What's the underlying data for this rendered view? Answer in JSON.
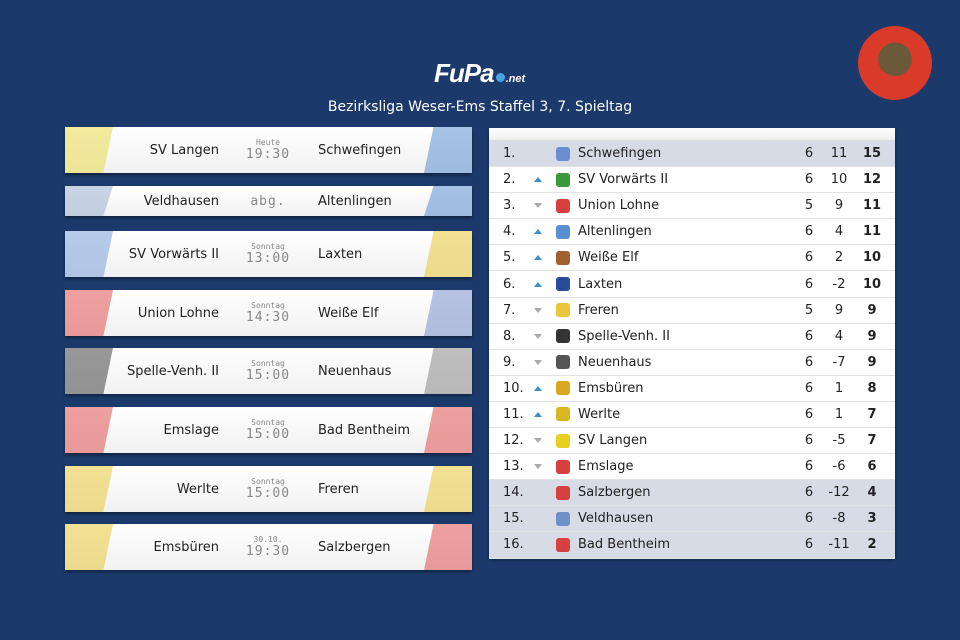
{
  "header": {
    "logo_text": "FuPa",
    "logo_suffix": ".net",
    "subtitle": "Bezirksliga Weser-Ems Staffel 3, 7. Spieltag"
  },
  "colors": {
    "background": "#1b3a6b",
    "highlight": "#d6dbe5",
    "trend_up": "#3a8fd0",
    "trend_down": "#aaaaaa"
  },
  "matches": [
    {
      "home": "SV Langen",
      "day": "Heute",
      "time": "19:30",
      "away": "Schwefingen",
      "home_color": "#e8d84a",
      "away_color": "#5a8fd0"
    },
    {
      "home": "Veldhausen",
      "day": "",
      "time": "abg.",
      "away": "Altenlingen",
      "home_color": "#9ab0d0",
      "away_color": "#5a8fd0"
    },
    {
      "home": "SV Vorwärts II",
      "day": "Sonntag",
      "time": "13:00",
      "away": "Laxten",
      "home_color": "#7aa0d8",
      "away_color": "#e8c83a"
    },
    {
      "home": "Union Lohne",
      "day": "Sonntag",
      "time": "14:30",
      "away": "Weiße Elf",
      "home_color": "#e05050",
      "away_color": "#7a90c8"
    },
    {
      "home": "Spelle-Venh. II",
      "day": "Sonntag",
      "time": "15:00",
      "away": "Neuenhaus",
      "home_color": "#444444",
      "away_color": "#888888"
    },
    {
      "home": "Emslage",
      "day": "Sonntag",
      "time": "15:00",
      "away": "Bad Bentheim",
      "home_color": "#e05050",
      "away_color": "#e05050"
    },
    {
      "home": "Werlte",
      "day": "Sonntag",
      "time": "15:00",
      "away": "Freren",
      "home_color": "#e8c83a",
      "away_color": "#e8c83a"
    },
    {
      "home": "Emsbüren",
      "day": "30.10.",
      "time": "19:30",
      "away": "Salzbergen",
      "home_color": "#e8c83a",
      "away_color": "#e05050"
    }
  ],
  "standings": [
    {
      "pos": "1.",
      "trend": "none",
      "team": "Schwefingen",
      "played": "6",
      "diff": "11",
      "points": "15",
      "hl": true,
      "color": "#6a8fd0"
    },
    {
      "pos": "2.",
      "trend": "up",
      "team": "SV Vorwärts II",
      "played": "6",
      "diff": "10",
      "points": "12",
      "hl": false,
      "color": "#3a9a3a"
    },
    {
      "pos": "3.",
      "trend": "down",
      "team": "Union Lohne",
      "played": "5",
      "diff": "9",
      "points": "11",
      "hl": false,
      "color": "#d84040"
    },
    {
      "pos": "4.",
      "trend": "up",
      "team": "Altenlingen",
      "played": "6",
      "diff": "4",
      "points": "11",
      "hl": false,
      "color": "#5a8fd0"
    },
    {
      "pos": "5.",
      "trend": "up",
      "team": "Weiße Elf",
      "played": "6",
      "diff": "2",
      "points": "10",
      "hl": false,
      "color": "#a06030"
    },
    {
      "pos": "6.",
      "trend": "up",
      "team": "Laxten",
      "played": "6",
      "diff": "-2",
      "points": "10",
      "hl": false,
      "color": "#2a4a9a"
    },
    {
      "pos": "7.",
      "trend": "down",
      "team": "Freren",
      "played": "5",
      "diff": "9",
      "points": "9",
      "hl": false,
      "color": "#e8c83a"
    },
    {
      "pos": "8.",
      "trend": "down",
      "team": "Spelle-Venh. II",
      "played": "6",
      "diff": "4",
      "points": "9",
      "hl": false,
      "color": "#333333"
    },
    {
      "pos": "9.",
      "trend": "down",
      "team": "Neuenhaus",
      "played": "6",
      "diff": "-7",
      "points": "9",
      "hl": false,
      "color": "#555555"
    },
    {
      "pos": "10.",
      "trend": "up",
      "team": "Emsbüren",
      "played": "6",
      "diff": "1",
      "points": "8",
      "hl": false,
      "color": "#d8a820"
    },
    {
      "pos": "11.",
      "trend": "up",
      "team": "Werlte",
      "played": "6",
      "diff": "1",
      "points": "7",
      "hl": false,
      "color": "#d8b820"
    },
    {
      "pos": "12.",
      "trend": "down",
      "team": "SV Langen",
      "played": "6",
      "diff": "-5",
      "points": "7",
      "hl": false,
      "color": "#e8d020"
    },
    {
      "pos": "13.",
      "trend": "down",
      "team": "Emslage",
      "played": "6",
      "diff": "-6",
      "points": "6",
      "hl": false,
      "color": "#d84040"
    },
    {
      "pos": "14.",
      "trend": "none",
      "team": "Salzbergen",
      "played": "6",
      "diff": "-12",
      "points": "4",
      "hl": true,
      "color": "#d84040"
    },
    {
      "pos": "15.",
      "trend": "none",
      "team": "Veldhausen",
      "played": "6",
      "diff": "-8",
      "points": "3",
      "hl": true,
      "color": "#7090c8"
    },
    {
      "pos": "16.",
      "trend": "none",
      "team": "Bad Bentheim",
      "played": "6",
      "diff": "-11",
      "points": "2",
      "hl": true,
      "color": "#d84040"
    }
  ]
}
